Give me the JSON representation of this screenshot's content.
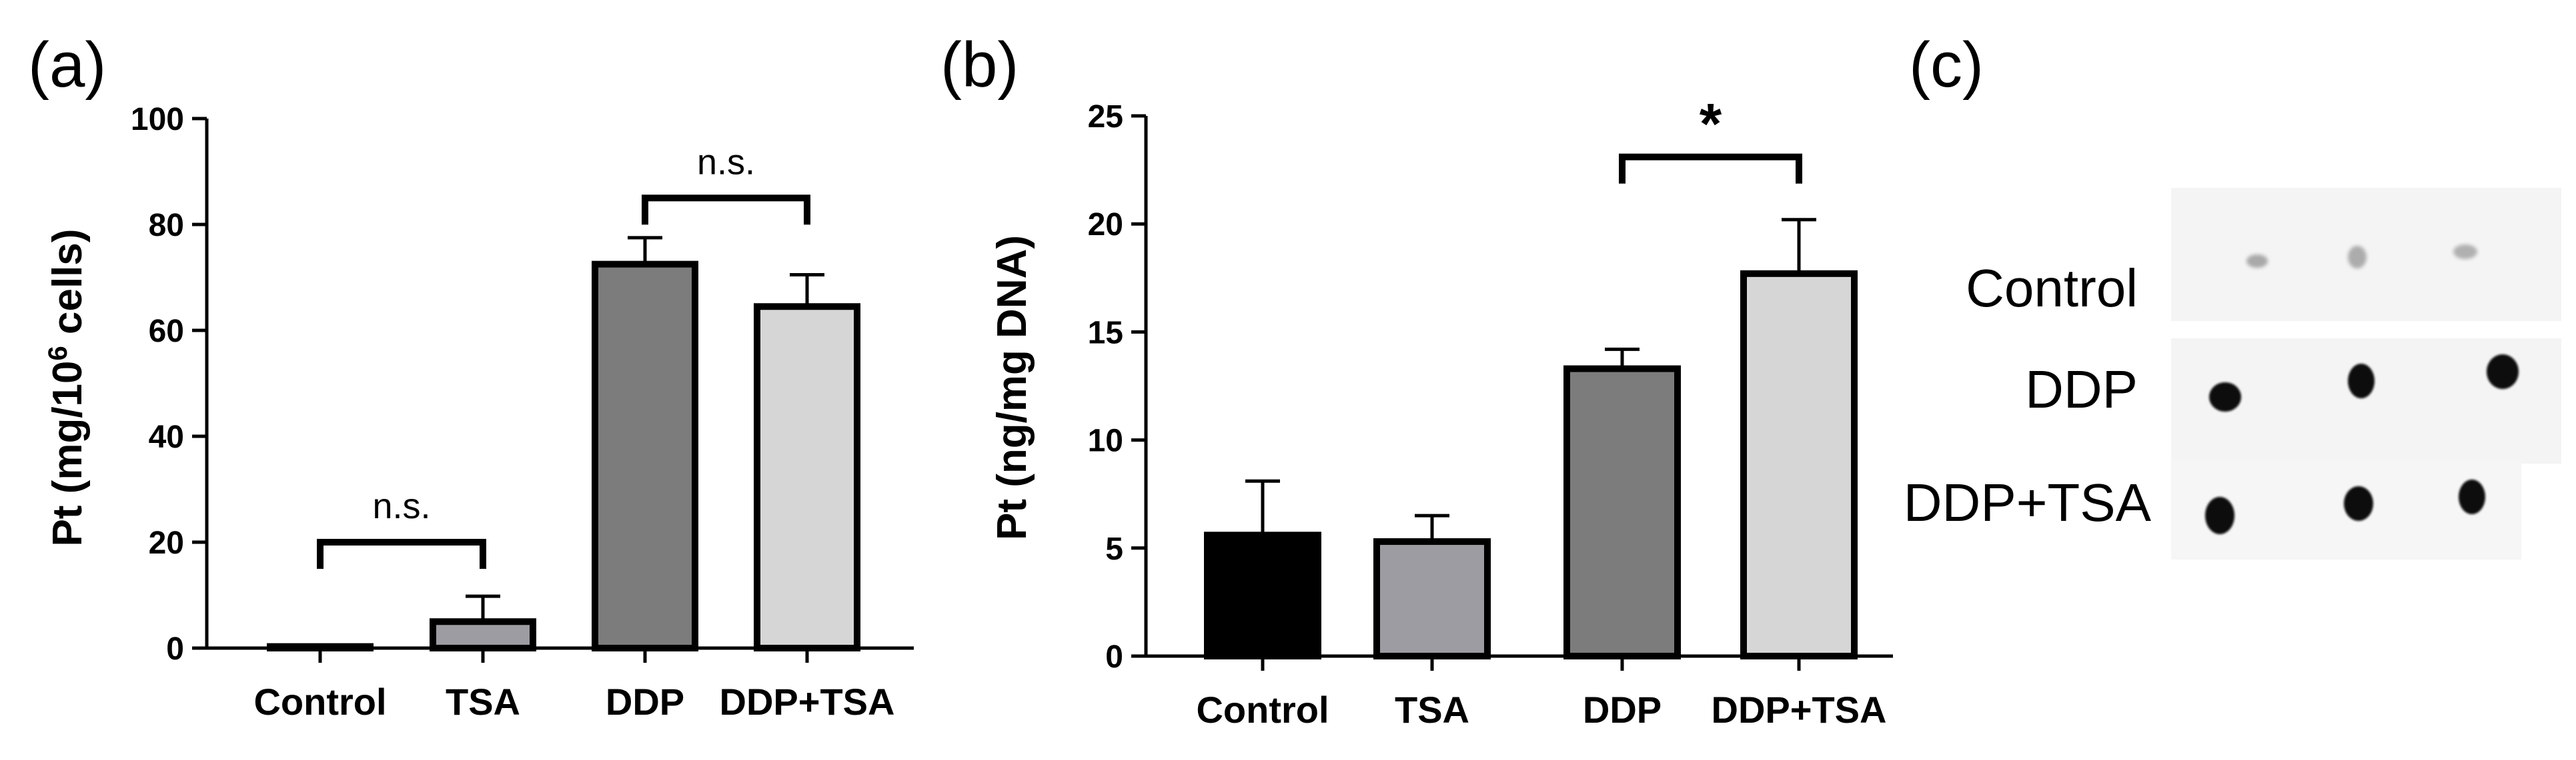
{
  "chart_data": [
    {
      "panel": "(a)",
      "type": "bar",
      "categories": [
        "Control",
        "TSA",
        "DDP",
        "DDP+TSA"
      ],
      "values": [
        0.3,
        5,
        72.5,
        64.5
      ],
      "errors": [
        0.2,
        4.8,
        5,
        6
      ],
      "colors": [
        "#000000",
        "#9c9ca2",
        "#7c7c7c",
        "#d6d6d6"
      ],
      "ylabel": "Pt (mg/10",
      "ylabel_sup": "6",
      "ylabel_tail": " cells)",
      "ylim": [
        0,
        100
      ],
      "yticks": [
        0,
        20,
        40,
        60,
        80,
        100
      ],
      "significance": [
        {
          "from": 0,
          "to": 1,
          "label": "n.s.",
          "y": 20
        },
        {
          "from": 2,
          "to": 3,
          "label": "n.s.",
          "y": 85
        }
      ]
    },
    {
      "panel": "(b)",
      "type": "bar",
      "categories": [
        "Control",
        "TSA",
        "DDP",
        "DDP+TSA"
      ],
      "values": [
        5.6,
        5.3,
        13.3,
        17.7
      ],
      "errors": [
        2.5,
        1.2,
        0.9,
        2.5
      ],
      "colors": [
        "#000000",
        "#9c9ca2",
        "#7c7c7c",
        "#d6d6d6"
      ],
      "ylabel": "Pt (ng/mg DNA)",
      "ylim": [
        0,
        25
      ],
      "yticks": [
        0,
        5,
        10,
        15,
        20,
        25
      ],
      "significance": [
        {
          "from": 2,
          "to": 3,
          "label": "*",
          "y": 23.1
        }
      ]
    }
  ],
  "blot": {
    "panel": "(c)",
    "rows": [
      {
        "label": "Control",
        "spot": "faint"
      },
      {
        "label": "DDP",
        "spot": "dark"
      },
      {
        "label": "DDP+TSA",
        "spot": "dark"
      }
    ]
  }
}
